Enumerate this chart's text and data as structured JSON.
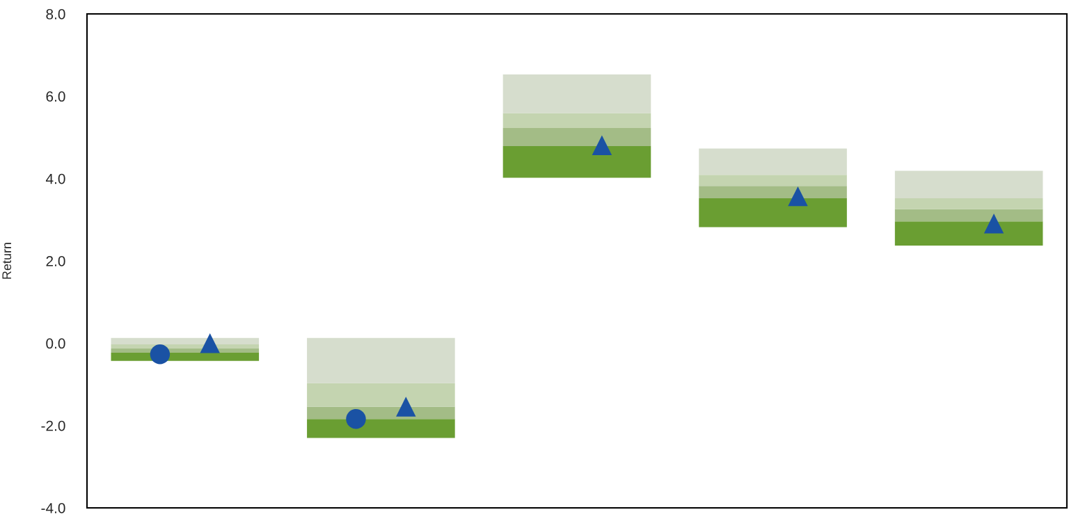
{
  "chart_data": {
    "type": "bar",
    "ylabel": "Return",
    "categories": [
      null,
      null,
      null,
      null,
      null
    ],
    "series": [
      {
        "color": "#6a9e32",
        "base": [
          -0.43,
          -2.3,
          4.02,
          2.82,
          2.37
        ],
        "values": [
          0.2,
          0.46,
          0.77,
          0.7,
          0.59
        ]
      },
      {
        "color": "#a3bc86",
        "base": [
          -0.23,
          -1.84,
          4.79,
          3.52,
          2.96
        ],
        "values": [
          0.1,
          0.3,
          0.44,
          0.3,
          0.3
        ]
      },
      {
        "color": "#c4d4b0",
        "base": [
          -0.13,
          -1.54,
          5.23,
          3.82,
          3.26
        ],
        "values": [
          0.1,
          0.57,
          0.36,
          0.27,
          0.26
        ]
      },
      {
        "color": "#d6ddcd",
        "base": [
          -0.03,
          -0.97,
          5.59,
          4.09,
          3.52
        ],
        "values": [
          0.16,
          1.1,
          0.94,
          0.64,
          0.67
        ]
      },
      {
        "type": "scatter",
        "marker": "circle",
        "color": "#1a52a4",
        "values": [
          -0.27,
          -1.84,
          null,
          null,
          null
        ]
      },
      {
        "type": "scatter",
        "marker": "triangle",
        "color": "#1a52a4",
        "values": [
          0.0,
          -1.54,
          4.81,
          3.57,
          2.91
        ]
      }
    ],
    "ylim": [
      -4,
      8
    ],
    "yticks": [
      {
        "value": -4,
        "label": "-4.0"
      },
      {
        "value": -2,
        "label": "-2.0"
      },
      {
        "value": 0,
        "label": "0.0"
      },
      {
        "value": 2,
        "label": "2.0"
      },
      {
        "value": 4,
        "label": "4.0"
      },
      {
        "value": 6,
        "label": "6.0"
      },
      {
        "value": 8,
        "label": "8.0"
      }
    ],
    "tick_labels": "y"
  }
}
